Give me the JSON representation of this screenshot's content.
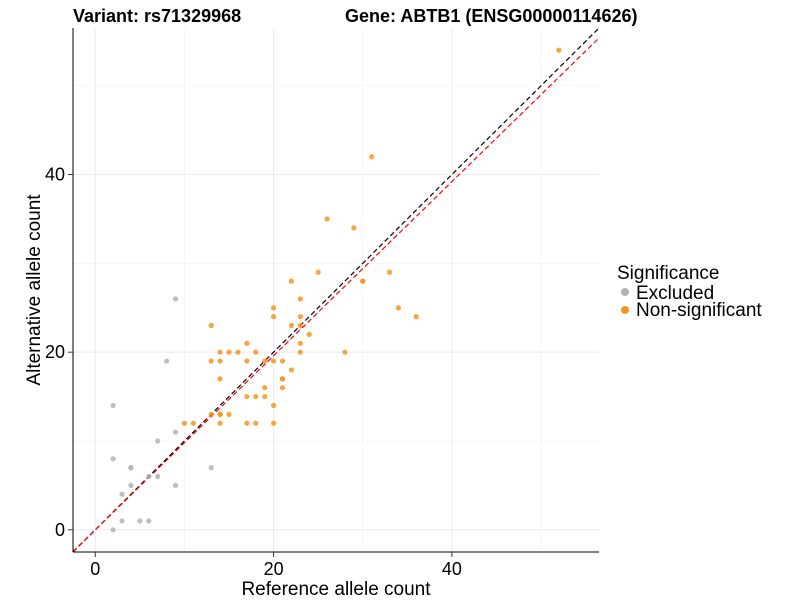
{
  "chart_data": {
    "type": "scatter",
    "title_left": "Variant: rs71329968",
    "title_right": "Gene: ABTB1 (ENSG00000114626)",
    "xlabel": "Reference allele count",
    "ylabel": "Alternative allele count",
    "xlim": [
      -2.5,
      56.5
    ],
    "ylim": [
      -2.5,
      56.5
    ],
    "x_ticks": [
      0,
      20,
      40
    ],
    "y_ticks": [
      0,
      20,
      40
    ],
    "x_tick_labels": [
      "0",
      "20",
      "40"
    ],
    "y_tick_labels": [
      "0",
      "20",
      "40"
    ],
    "grid": true,
    "legend": {
      "title": "Significance",
      "position": "right",
      "entries": [
        {
          "label": "Excluded",
          "color": "#b3b3b3"
        },
        {
          "label": "Non-significant",
          "color": "#f7941d"
        }
      ]
    },
    "reference_lines": [
      {
        "name": "identity",
        "slope": 1.0,
        "intercept": 0,
        "color": "#000000",
        "style": "dashed"
      },
      {
        "name": "fit",
        "slope": 0.98,
        "intercept": 0,
        "color": "#ff0000",
        "style": "dashed"
      }
    ],
    "series": [
      {
        "name": "Excluded",
        "color": "#b3b3b3",
        "points": [
          [
            2,
            0
          ],
          [
            2,
            8
          ],
          [
            2,
            14
          ],
          [
            3,
            1
          ],
          [
            3,
            4
          ],
          [
            4,
            5
          ],
          [
            4,
            7
          ],
          [
            4,
            7
          ],
          [
            5,
            1
          ],
          [
            6,
            1
          ],
          [
            6,
            6
          ],
          [
            7,
            6
          ],
          [
            7,
            10
          ],
          [
            8,
            19
          ],
          [
            9,
            5
          ],
          [
            9,
            11
          ],
          [
            9,
            26
          ],
          [
            13,
            7
          ]
        ]
      },
      {
        "name": "Non-significant",
        "color": "#f7941d",
        "points": [
          [
            10,
            12
          ],
          [
            11,
            12
          ],
          [
            13,
            13
          ],
          [
            13,
            19
          ],
          [
            13,
            23
          ],
          [
            14,
            12
          ],
          [
            14,
            13
          ],
          [
            14,
            13
          ],
          [
            14,
            17
          ],
          [
            14,
            19
          ],
          [
            14,
            20
          ],
          [
            15,
            13
          ],
          [
            15,
            20
          ],
          [
            16,
            20
          ],
          [
            17,
            12
          ],
          [
            17,
            15
          ],
          [
            17,
            19
          ],
          [
            17,
            21
          ],
          [
            18,
            12
          ],
          [
            18,
            15
          ],
          [
            18,
            20
          ],
          [
            19,
            15
          ],
          [
            19,
            16
          ],
          [
            19,
            19
          ],
          [
            20,
            12
          ],
          [
            20,
            14
          ],
          [
            20,
            19
          ],
          [
            20,
            24
          ],
          [
            20,
            25
          ],
          [
            21,
            16
          ],
          [
            21,
            17
          ],
          [
            21,
            17
          ],
          [
            21,
            19
          ],
          [
            22,
            18
          ],
          [
            22,
            23
          ],
          [
            22,
            28
          ],
          [
            23,
            20
          ],
          [
            23,
            21
          ],
          [
            23,
            23
          ],
          [
            23,
            24
          ],
          [
            23,
            26
          ],
          [
            24,
            22
          ],
          [
            25,
            29
          ],
          [
            26,
            35
          ],
          [
            28,
            20
          ],
          [
            29,
            34
          ],
          [
            30,
            28
          ],
          [
            30,
            28
          ],
          [
            31,
            42
          ],
          [
            33,
            29
          ],
          [
            34,
            25
          ],
          [
            36,
            24
          ],
          [
            52,
            54
          ]
        ]
      }
    ]
  }
}
